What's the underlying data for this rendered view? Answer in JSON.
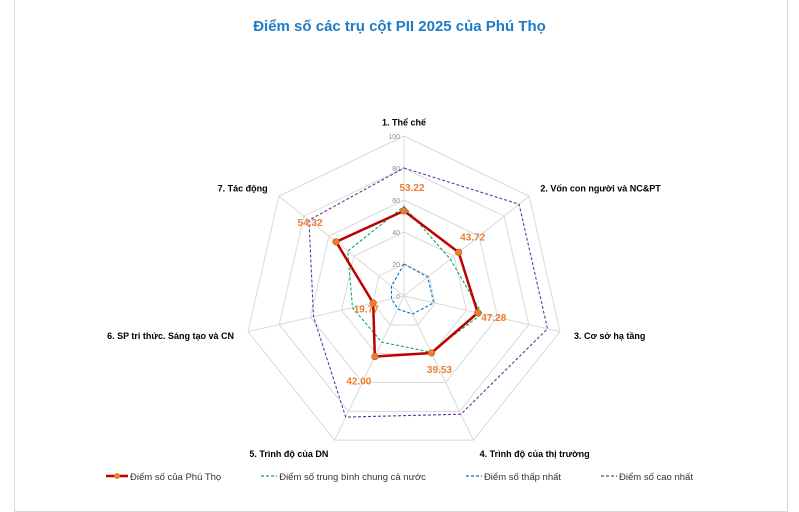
{
  "chart_data": {
    "type": "radar",
    "title": "Điểm số các trụ cột PII 2025 của Phú Thọ",
    "categories": [
      "1. Thể chế",
      "2. Vốn con người và NC&PT",
      "3. Cơ sở hạ tầng",
      "4. Trình độ của thị trường",
      "5. Trình độ của DN",
      "6. SP tri thức. Sáng tạo và CN",
      "7. Tác động"
    ],
    "rlim": [
      0,
      100
    ],
    "rticks": [
      "0",
      "20",
      "40",
      "60",
      "80",
      "100"
    ],
    "series": [
      {
        "name": "Điểm số của Phú Thọ",
        "color": "#c00000",
        "values": [
          53.22,
          43.72,
          47.28,
          39.53,
          42.0,
          19.77,
          54.32
        ],
        "labels": [
          "53.22",
          "43.72",
          "47.28",
          "39.53",
          "42.00",
          "19.77",
          "54.32"
        ]
      },
      {
        "name": "Điểm số trung bình chung cả nước",
        "color": "#00b050",
        "values": [
          56,
          37,
          50,
          39,
          32,
          33,
          45
        ]
      },
      {
        "name": "Điểm số thấp nhất",
        "color": "#0070c0",
        "values": [
          20,
          19,
          19,
          12.5,
          9,
          8,
          10
        ]
      },
      {
        "name": "Điểm số cao nhất",
        "color": "#7030a0",
        "values": [
          80,
          92,
          92,
          82,
          84,
          58,
          76
        ]
      }
    ],
    "legend": "bottom"
  }
}
